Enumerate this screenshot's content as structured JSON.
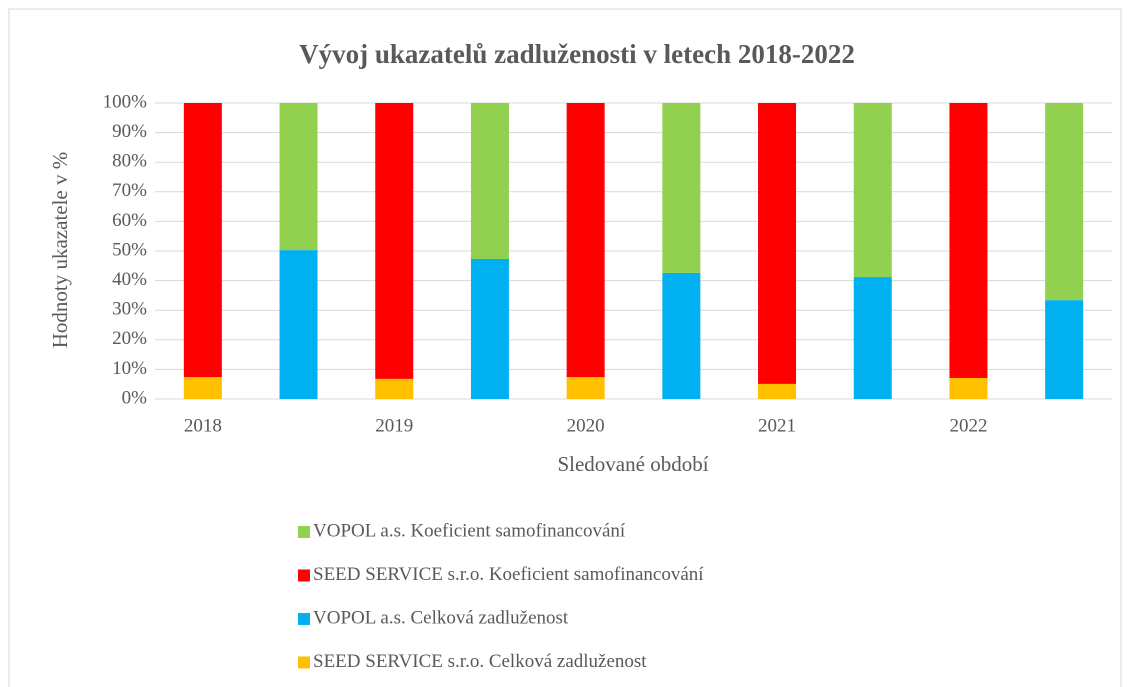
{
  "chart_data": {
    "type": "stacked_bar",
    "title": "Vývoj ukazatelů zadluženosti v letech 2018-2022",
    "x_label": "Sledované období",
    "y_label": "Hodnoty ukazatele v %",
    "categories": [
      "2018",
      null,
      "2019",
      null,
      "2020",
      null,
      "2021",
      null,
      "2022",
      null
    ],
    "series": [
      {
        "name": "SEED SERVICE s.r.o. Celková zadluženost",
        "color": "#ffc000",
        "values": [
          7.4,
          null,
          6.8,
          null,
          7.4,
          null,
          5.1,
          null,
          7.1,
          null
        ]
      },
      {
        "name": "VOPOL a.s. Celková zadluženost",
        "color": "#00b0f0",
        "values": [
          null,
          50.3,
          null,
          47.3,
          null,
          42.6,
          null,
          41.2,
          null,
          33.4
        ]
      },
      {
        "name": "SEED SERVICE s.r.o. Koeficient samofinancování",
        "color": "#ff0000",
        "values": [
          92.6,
          null,
          93.2,
          null,
          92.6,
          null,
          94.9,
          null,
          92.9,
          null
        ]
      },
      {
        "name": "VOPOL a.s. Koeficient samofinancování",
        "color": "#92d050",
        "values": [
          null,
          49.7,
          null,
          52.7,
          null,
          57.4,
          null,
          58.8,
          null,
          66.6
        ]
      }
    ],
    "ylim": [
      0,
      100
    ],
    "yticks": [
      {
        "value": 0,
        "label": "0%"
      },
      {
        "value": 10,
        "label": "10%"
      },
      {
        "value": 20,
        "label": "20%"
      },
      {
        "value": 30,
        "label": "30%"
      },
      {
        "value": 40,
        "label": "40%"
      },
      {
        "value": 50,
        "label": "50%"
      },
      {
        "value": 60,
        "label": "60%"
      },
      {
        "value": 70,
        "label": "70%"
      },
      {
        "value": 80,
        "label": "80%"
      },
      {
        "value": 90,
        "label": "90%"
      },
      {
        "value": 100,
        "label": "100%"
      }
    ],
    "grid": true
  }
}
